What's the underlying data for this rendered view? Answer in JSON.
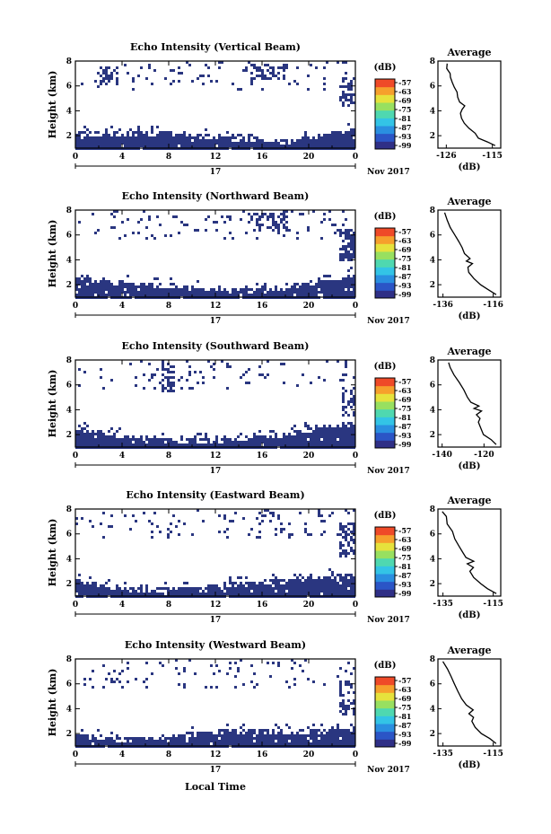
{
  "colors": {
    "echo": "#2a3680",
    "frame": "#000000",
    "profile": "#000000",
    "colorbar": [
      "#2f2f86",
      "#2b55c6",
      "#2a8fe0",
      "#33c4e6",
      "#4fd8b0",
      "#98e060",
      "#e6e23c",
      "#f6a02c",
      "#ef4a28"
    ]
  },
  "bottom_label": "Local Time",
  "chart_data": [
    {
      "type": "heatmap",
      "title": "Echo Intensity (Vertical Beam)",
      "ylabel": "Height (km)",
      "xlim": [
        0,
        24
      ],
      "ylim": [
        1,
        8
      ],
      "x_ticks": [
        "0",
        "4",
        "8",
        "12",
        "16",
        "20",
        "0"
      ],
      "y_ticks": [
        "2",
        "4",
        "6",
        "8"
      ],
      "date_label": "17",
      "month_label": "Nov 2017",
      "colorbar_unit": "(dB)",
      "colorbar_ticks": [
        "-57",
        "-63",
        "-69",
        "-75",
        "-81",
        "-87",
        "-93",
        "-99"
      ],
      "profile": {
        "title": "Average",
        "xlabel": "(dB)",
        "x_ticks": [
          "-126",
          "-115"
        ],
        "xlim": [
          -128,
          -113
        ],
        "y_ticks": [
          "2",
          "4",
          "6",
          "8"
        ],
        "ylim": [
          1,
          8
        ],
        "values": [
          [
            -114.3,
            1.2
          ],
          [
            -116,
            1.5
          ],
          [
            -118.2,
            1.8
          ],
          [
            -119.2,
            2.2
          ],
          [
            -120.4,
            2.6
          ],
          [
            -121.6,
            3.0
          ],
          [
            -122.2,
            3.4
          ],
          [
            -122.5,
            3.8
          ],
          [
            -122.1,
            4.1
          ],
          [
            -121.7,
            4.4
          ],
          [
            -122.6,
            4.7
          ],
          [
            -123.2,
            5.1
          ],
          [
            -123.6,
            5.5
          ],
          [
            -124.1,
            5.9
          ],
          [
            -124.5,
            6.3
          ],
          [
            -125.0,
            6.7
          ],
          [
            -125.3,
            7.0
          ],
          [
            -125.7,
            7.4
          ],
          [
            -126.0,
            7.8
          ]
        ]
      },
      "echo_regions": [
        {
          "x": [
            0,
            24
          ],
          "y": [
            1,
            2.4
          ]
        },
        {
          "x": [
            2,
            3.5
          ],
          "y": [
            6.2,
            7.6
          ]
        },
        {
          "x": [
            15,
            18
          ],
          "y": [
            6.6,
            7.8
          ]
        },
        {
          "x": [
            22.6,
            24
          ],
          "y": [
            4.4,
            6.8
          ]
        }
      ]
    },
    {
      "type": "heatmap",
      "title": "Echo Intensity (Northward Beam)",
      "ylabel": "Height (km)",
      "xlim": [
        0,
        24
      ],
      "ylim": [
        1,
        8
      ],
      "x_ticks": [
        "0",
        "4",
        "8",
        "12",
        "16",
        "20",
        "0"
      ],
      "y_ticks": [
        "2",
        "4",
        "6",
        "8"
      ],
      "date_label": "17",
      "month_label": "Nov 2017",
      "colorbar_unit": "(dB)",
      "colorbar_ticks": [
        "-57",
        "-63",
        "-69",
        "-75",
        "-81",
        "-87",
        "-93",
        "-99"
      ],
      "profile": {
        "title": "Average",
        "xlabel": "(dB)",
        "x_ticks": [
          "-136",
          "-116"
        ],
        "xlim": [
          -138,
          -113
        ],
        "y_ticks": [
          "2",
          "4",
          "6",
          "8"
        ],
        "ylim": [
          1,
          8
        ],
        "values": [
          [
            -115,
            1.2
          ],
          [
            -118,
            1.6
          ],
          [
            -121,
            2.0
          ],
          [
            -123.5,
            2.5
          ],
          [
            -125.5,
            3.0
          ],
          [
            -126,
            3.4
          ],
          [
            -124.5,
            3.7
          ],
          [
            -126.5,
            3.9
          ],
          [
            -125,
            4.1
          ],
          [
            -127.5,
            4.5
          ],
          [
            -128.5,
            5.0
          ],
          [
            -130,
            5.5
          ],
          [
            -131.5,
            6.0
          ],
          [
            -133,
            6.6
          ],
          [
            -134,
            7.2
          ],
          [
            -135,
            7.8
          ]
        ]
      },
      "echo_regions": [
        {
          "x": [
            0,
            24
          ],
          "y": [
            1,
            2.6
          ]
        },
        {
          "x": [
            15,
            18
          ],
          "y": [
            6.4,
            7.8
          ]
        },
        {
          "x": [
            22.5,
            24
          ],
          "y": [
            4.0,
            6.6
          ]
        }
      ]
    },
    {
      "type": "heatmap",
      "title": "Echo Intensity (Southward Beam)",
      "ylabel": "Height (km)",
      "xlim": [
        0,
        24
      ],
      "ylim": [
        1,
        8
      ],
      "x_ticks": [
        "0",
        "4",
        "8",
        "12",
        "16",
        "20",
        "0"
      ],
      "y_ticks": [
        "2",
        "4",
        "6",
        "8"
      ],
      "date_label": "17",
      "month_label": "Nov 2017",
      "colorbar_unit": "(dB)",
      "colorbar_ticks": [
        "-57",
        "-63",
        "-69",
        "-75",
        "-81",
        "-87",
        "-93",
        "-99"
      ],
      "profile": {
        "title": "Average",
        "xlabel": "(dB)",
        "x_ticks": [
          "-140",
          "-120"
        ],
        "xlim": [
          -142,
          -112
        ],
        "y_ticks": [
          "2",
          "4",
          "6",
          "8"
        ],
        "ylim": [
          1,
          8
        ],
        "values": [
          [
            -114,
            1.2
          ],
          [
            -117,
            1.6
          ],
          [
            -120,
            2.0
          ],
          [
            -121.5,
            2.5
          ],
          [
            -123,
            3.0
          ],
          [
            -121.5,
            3.3
          ],
          [
            -124,
            3.6
          ],
          [
            -121,
            3.9
          ],
          [
            -125,
            4.1
          ],
          [
            -122,
            4.3
          ],
          [
            -126,
            4.6
          ],
          [
            -128,
            5.0
          ],
          [
            -130,
            5.6
          ],
          [
            -132,
            6.2
          ],
          [
            -134,
            6.8
          ],
          [
            -136,
            7.4
          ],
          [
            -137,
            7.8
          ]
        ]
      },
      "echo_regions": [
        {
          "x": [
            0,
            24
          ],
          "y": [
            1,
            2.6
          ]
        },
        {
          "x": [
            7,
            8.5
          ],
          "y": [
            5.6,
            7.6
          ]
        },
        {
          "x": [
            22.8,
            24
          ],
          "y": [
            3.6,
            6.0
          ]
        }
      ]
    },
    {
      "type": "heatmap",
      "title": "Echo Intensity (Eastward Beam)",
      "ylabel": "Height (km)",
      "xlim": [
        0,
        24
      ],
      "ylim": [
        1,
        8
      ],
      "x_ticks": [
        "0",
        "4",
        "8",
        "12",
        "16",
        "20",
        "0"
      ],
      "y_ticks": [
        "2",
        "4",
        "6",
        "8"
      ],
      "date_label": "17",
      "month_label": "Nov 2017",
      "colorbar_unit": "(dB)",
      "colorbar_ticks": [
        "-57",
        "-63",
        "-69",
        "-75",
        "-81",
        "-87",
        "-93",
        "-99"
      ],
      "profile": {
        "title": "Average",
        "xlabel": "(dB)",
        "x_ticks": [
          "-135",
          "-115"
        ],
        "xlim": [
          -137,
          -112
        ],
        "y_ticks": [
          "2",
          "4",
          "6",
          "8"
        ],
        "ylim": [
          1,
          8
        ],
        "values": [
          [
            -114,
            1.2
          ],
          [
            -117,
            1.6
          ],
          [
            -120,
            2.0
          ],
          [
            -122.5,
            2.5
          ],
          [
            -124,
            3.0
          ],
          [
            -123,
            3.3
          ],
          [
            -125,
            3.6
          ],
          [
            -122.5,
            3.8
          ],
          [
            -125.5,
            4.1
          ],
          [
            -127,
            4.5
          ],
          [
            -128.5,
            5.0
          ],
          [
            -130,
            5.6
          ],
          [
            -131.5,
            6.2
          ],
          [
            -133,
            6.8
          ],
          [
            -134,
            7.4
          ],
          [
            -135,
            7.8
          ]
        ]
      },
      "echo_regions": [
        {
          "x": [
            0,
            24
          ],
          "y": [
            1,
            2.6
          ]
        },
        {
          "x": [
            15.5,
            17.5
          ],
          "y": [
            7.0,
            7.8
          ]
        },
        {
          "x": [
            22.6,
            24
          ],
          "y": [
            4.2,
            7.0
          ]
        }
      ]
    },
    {
      "type": "heatmap",
      "title": "Echo Intensity (Westward Beam)",
      "ylabel": "Height (km)",
      "xlim": [
        0,
        24
      ],
      "ylim": [
        1,
        8
      ],
      "x_ticks": [
        "0",
        "4",
        "8",
        "12",
        "16",
        "20",
        "0"
      ],
      "y_ticks": [
        "2",
        "4",
        "6",
        "8"
      ],
      "date_label": "17",
      "month_label": "Nov 2017",
      "colorbar_unit": "(dB)",
      "colorbar_ticks": [
        "-57",
        "-63",
        "-69",
        "-75",
        "-81",
        "-87",
        "-93",
        "-99"
      ],
      "profile": {
        "title": "Average",
        "xlabel": "(dB)",
        "x_ticks": [
          "-135",
          "-115"
        ],
        "xlim": [
          -137,
          -112
        ],
        "y_ticks": [
          "2",
          "4",
          "6",
          "8"
        ],
        "ylim": [
          1,
          8
        ],
        "values": [
          [
            -114,
            1.2
          ],
          [
            -116.5,
            1.6
          ],
          [
            -119.5,
            2.0
          ],
          [
            -122,
            2.5
          ],
          [
            -123.5,
            3.0
          ],
          [
            -122.5,
            3.3
          ],
          [
            -124.5,
            3.6
          ],
          [
            -123,
            3.9
          ],
          [
            -126,
            4.3
          ],
          [
            -127.5,
            4.8
          ],
          [
            -129,
            5.4
          ],
          [
            -130.5,
            6.0
          ],
          [
            -132,
            6.6
          ],
          [
            -133.5,
            7.2
          ],
          [
            -135,
            7.8
          ]
        ]
      },
      "echo_regions": [
        {
          "x": [
            0,
            24
          ],
          "y": [
            1,
            2.4
          ]
        },
        {
          "x": [
            22.5,
            24
          ],
          "y": [
            3.6,
            6.4
          ]
        }
      ]
    }
  ]
}
